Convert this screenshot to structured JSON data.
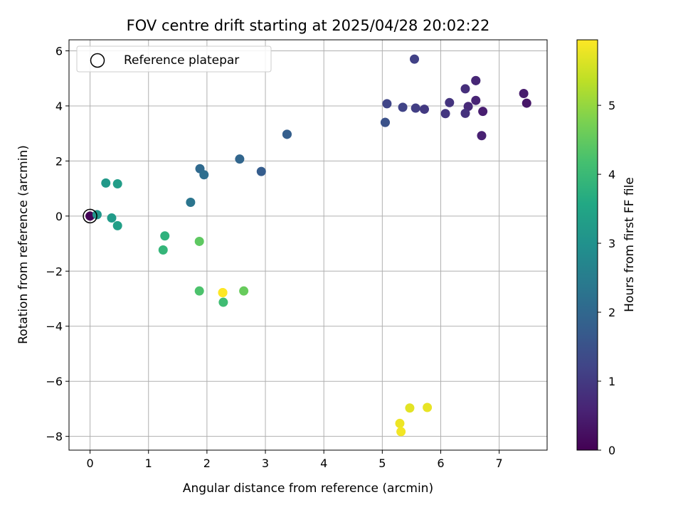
{
  "chart_data": {
    "type": "scatter",
    "title": "FOV centre drift starting at 2025/04/28 20:02:22",
    "xlabel": "Angular distance from reference (arcmin)",
    "ylabel": "Rotation from reference (arcmin)",
    "xlim": [
      -0.36,
      7.82
    ],
    "ylim": [
      -8.5,
      6.4
    ],
    "xticks": [
      0,
      1,
      2,
      3,
      4,
      5,
      6,
      7
    ],
    "yticks": [
      -8,
      -6,
      -4,
      -2,
      0,
      2,
      4,
      6
    ],
    "grid": true,
    "legend": {
      "placement": "top-left",
      "entries": [
        "Reference platepar"
      ]
    },
    "reference_point": {
      "x": 0,
      "y": 0
    },
    "colorbar": {
      "label": "Hours from first FF file",
      "colormap": "viridis",
      "range": [
        0,
        5.95
      ],
      "ticks": [
        0,
        1,
        2,
        3,
        4,
        5
      ]
    },
    "points": [
      {
        "x": 0.0,
        "y": 0.0,
        "c": 0.05
      },
      {
        "x": 7.47,
        "y": 4.1,
        "c": 0.35
      },
      {
        "x": 7.42,
        "y": 4.45,
        "c": 0.45
      },
      {
        "x": 6.72,
        "y": 3.8,
        "c": 0.5
      },
      {
        "x": 6.7,
        "y": 2.92,
        "c": 0.55
      },
      {
        "x": 6.6,
        "y": 4.2,
        "c": 0.6
      },
      {
        "x": 6.6,
        "y": 4.92,
        "c": 0.75
      },
      {
        "x": 6.6,
        "y": 4.92,
        "c": 0.65
      },
      {
        "x": 6.47,
        "y": 3.98,
        "c": 0.7
      },
      {
        "x": 6.42,
        "y": 4.62,
        "c": 0.8
      },
      {
        "x": 6.42,
        "y": 3.73,
        "c": 0.85
      },
      {
        "x": 6.15,
        "y": 4.12,
        "c": 0.9
      },
      {
        "x": 6.08,
        "y": 3.72,
        "c": 0.95
      },
      {
        "x": 5.72,
        "y": 3.88,
        "c": 1.0
      },
      {
        "x": 5.57,
        "y": 3.92,
        "c": 1.1
      },
      {
        "x": 5.55,
        "y": 5.7,
        "c": 1.15
      },
      {
        "x": 5.35,
        "y": 3.95,
        "c": 1.2
      },
      {
        "x": 5.08,
        "y": 4.08,
        "c": 1.25
      },
      {
        "x": 5.05,
        "y": 3.4,
        "c": 1.4
      },
      {
        "x": 5.05,
        "y": 3.4,
        "c": 1.5
      },
      {
        "x": 3.37,
        "y": 2.97,
        "c": 1.7
      },
      {
        "x": 3.37,
        "y": 2.97,
        "c": 1.8
      },
      {
        "x": 2.93,
        "y": 1.62,
        "c": 1.75
      },
      {
        "x": 2.56,
        "y": 2.07,
        "c": 1.95
      },
      {
        "x": 1.88,
        "y": 1.72,
        "c": 2.05
      },
      {
        "x": 1.95,
        "y": 1.5,
        "c": 2.15
      },
      {
        "x": 1.72,
        "y": 0.5,
        "c": 2.3
      },
      {
        "x": 0.12,
        "y": 0.05,
        "c": 3.1
      },
      {
        "x": 0.27,
        "y": 1.2,
        "c": 3.2
      },
      {
        "x": 0.47,
        "y": 1.17,
        "c": 3.3
      },
      {
        "x": 0.37,
        "y": -0.07,
        "c": 3.25
      },
      {
        "x": 0.47,
        "y": -0.35,
        "c": 3.35
      },
      {
        "x": 1.28,
        "y": -0.72,
        "c": 3.8
      },
      {
        "x": 1.25,
        "y": -1.23,
        "c": 3.9
      },
      {
        "x": 1.87,
        "y": -0.92,
        "c": 4.45
      },
      {
        "x": 1.87,
        "y": -2.72,
        "c": 4.25
      },
      {
        "x": 2.63,
        "y": -2.72,
        "c": 4.55
      },
      {
        "x": 2.28,
        "y": -3.13,
        "c": 4.1
      },
      {
        "x": 2.27,
        "y": -2.78,
        "c": 5.9
      },
      {
        "x": 2.27,
        "y": -2.78,
        "c": 5.95
      },
      {
        "x": 5.47,
        "y": -6.97,
        "c": 5.7
      },
      {
        "x": 5.77,
        "y": -6.95,
        "c": 5.75
      },
      {
        "x": 5.3,
        "y": -7.53,
        "c": 5.8
      },
      {
        "x": 5.32,
        "y": -7.83,
        "c": 5.85
      }
    ]
  }
}
